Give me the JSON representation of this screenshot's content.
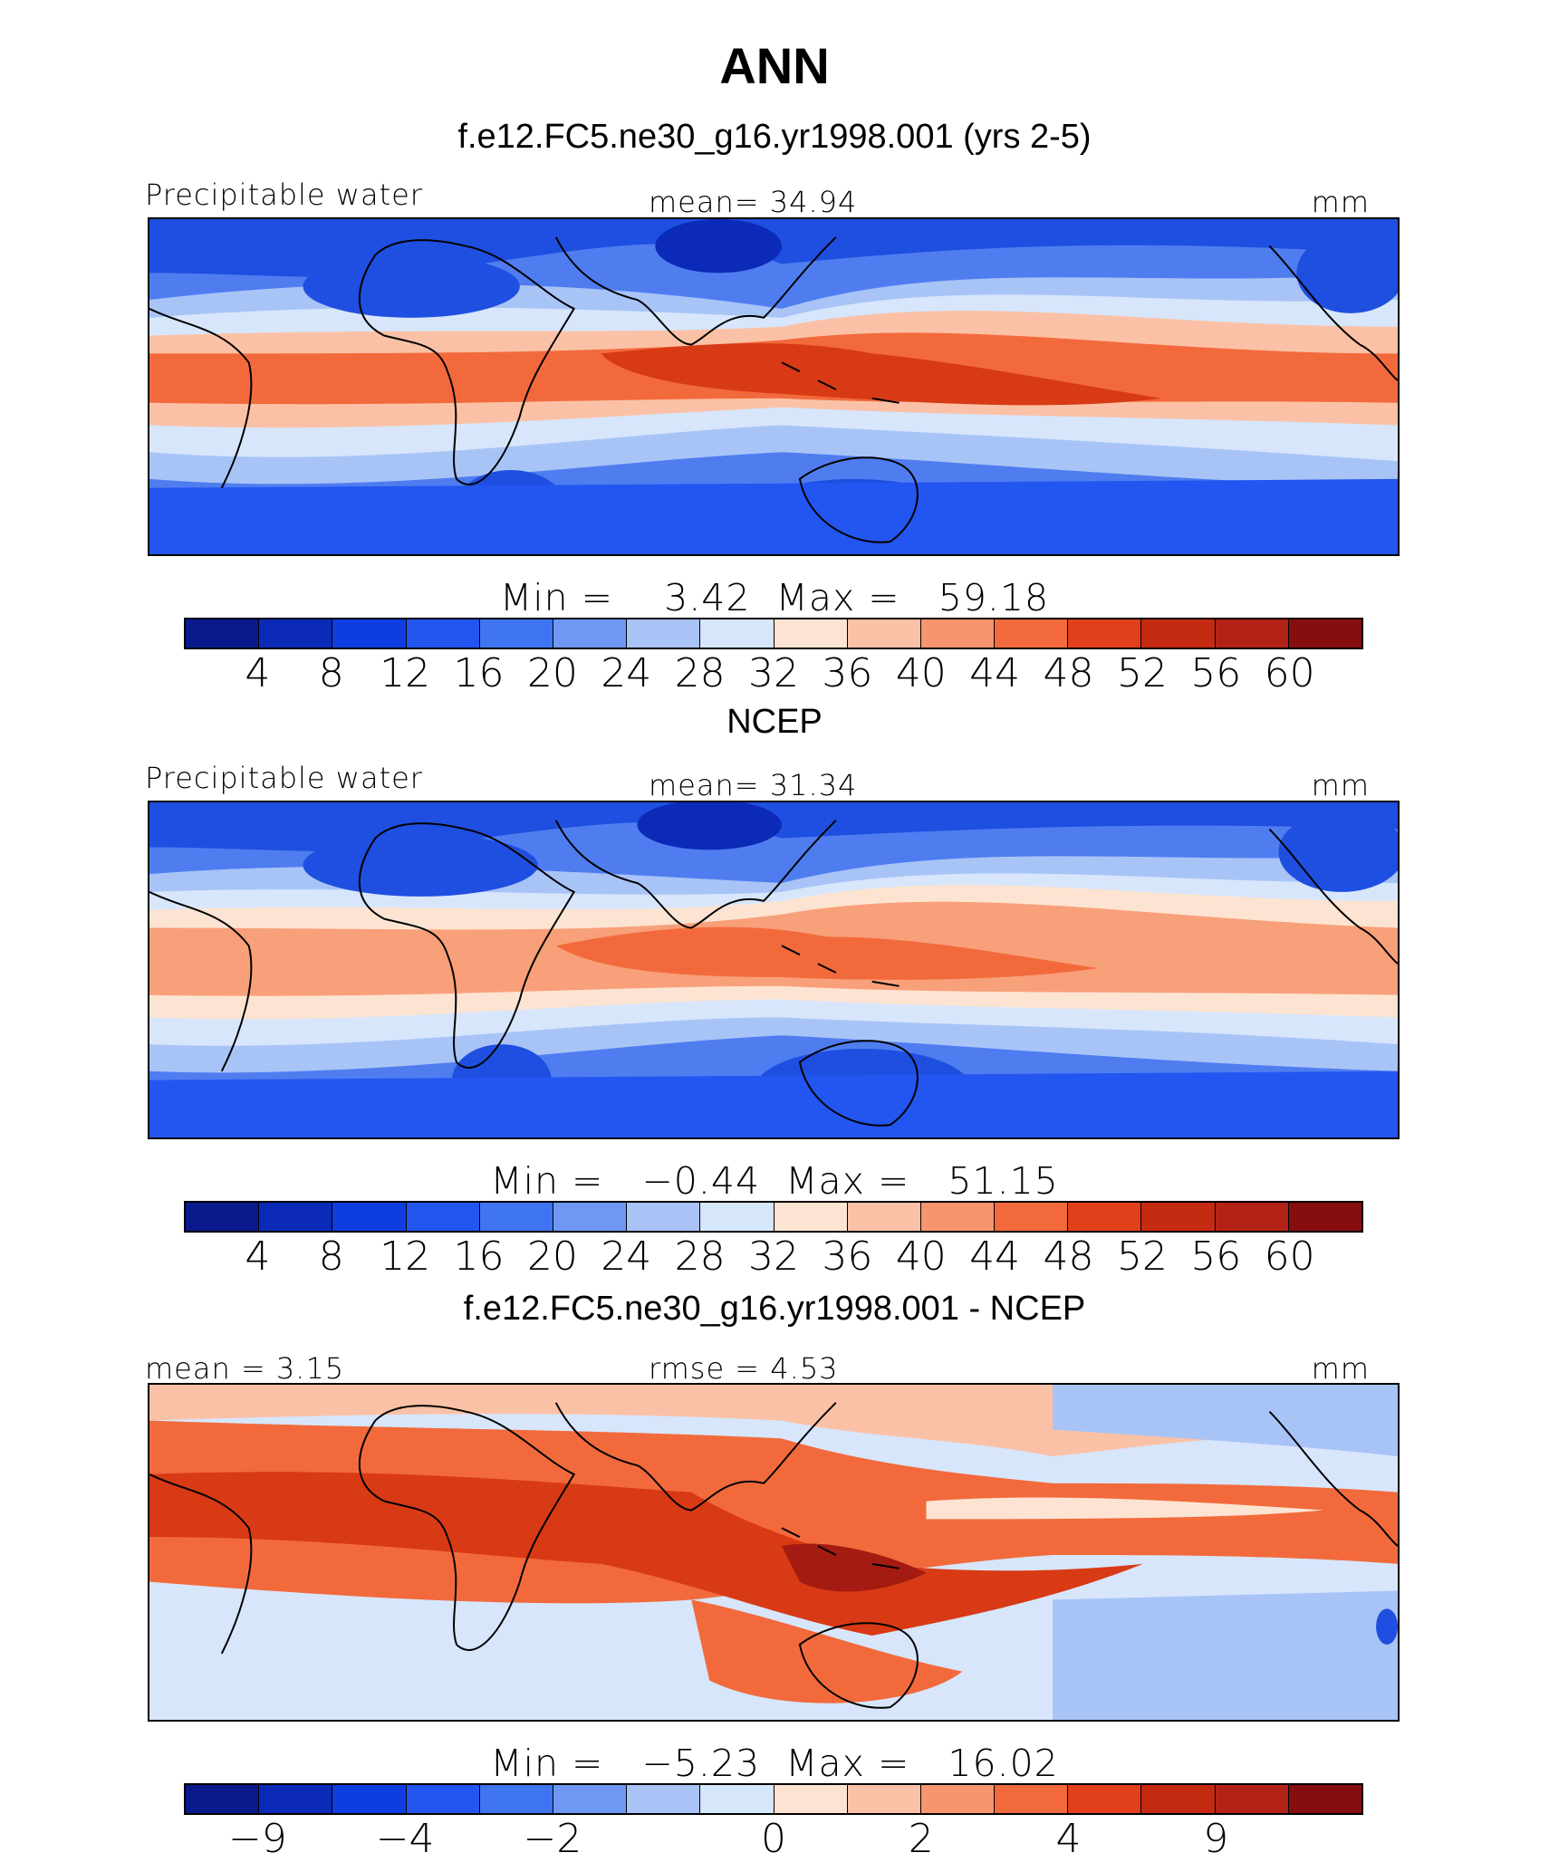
{
  "figure_title": "ANN",
  "panels": [
    {
      "title": "f.e12.FC5.ne30_g16.yr1998.001 (yrs 2-5)",
      "left_label": "Precipitable water",
      "center_label": "mean=   34.94",
      "units": "mm",
      "minmax": "Min =    3.42  Max =   59.18",
      "colorbar_ticks": [
        "4",
        "8",
        "12",
        "16",
        "20",
        "24",
        "28",
        "32",
        "36",
        "40",
        "44",
        "48",
        "52",
        "56",
        "60"
      ]
    },
    {
      "title": "NCEP",
      "left_label": "Precipitable water",
      "center_label": "mean=   31.34",
      "units": "mm",
      "minmax": "Min =   −0.44  Max =   51.15",
      "colorbar_ticks": [
        "4",
        "8",
        "12",
        "16",
        "20",
        "24",
        "28",
        "32",
        "36",
        "40",
        "44",
        "48",
        "52",
        "56",
        "60"
      ]
    },
    {
      "title": "f.e12.FC5.ne30_g16.yr1998.001 - NCEP",
      "left_label": "mean =    3.15",
      "center_label": "rmse =    4.53",
      "units": "mm",
      "minmax": "Min =   −5.23  Max =   16.02",
      "colorbar_ticks": [
        "−9",
        "−4",
        "−2",
        "0",
        "2",
        "4",
        "9"
      ]
    }
  ],
  "colorbar_colors": [
    "#0a1a8c",
    "#0b2ab8",
    "#0f3ee0",
    "#2356f0",
    "#3f74f2",
    "#6f98f3",
    "#a9c3f6",
    "#d6e6fb",
    "#fde3d2",
    "#fbc1a6",
    "#f8956f",
    "#f26a3c",
    "#e2401b",
    "#c52a12",
    "#b22216",
    "#860e0e"
  ],
  "contour_palette": {
    "deep_blue": "#1f4fe0",
    "mid_blue": "#4f7df0",
    "light_blue": "#a8c4f7",
    "pale_blue": "#d7e6fb",
    "pale_red": "#fde3d2",
    "light_red": "#f8a07a",
    "mid_red": "#f26a3c",
    "deep_red": "#d83a15",
    "darkest_red": "#a41b12"
  }
}
